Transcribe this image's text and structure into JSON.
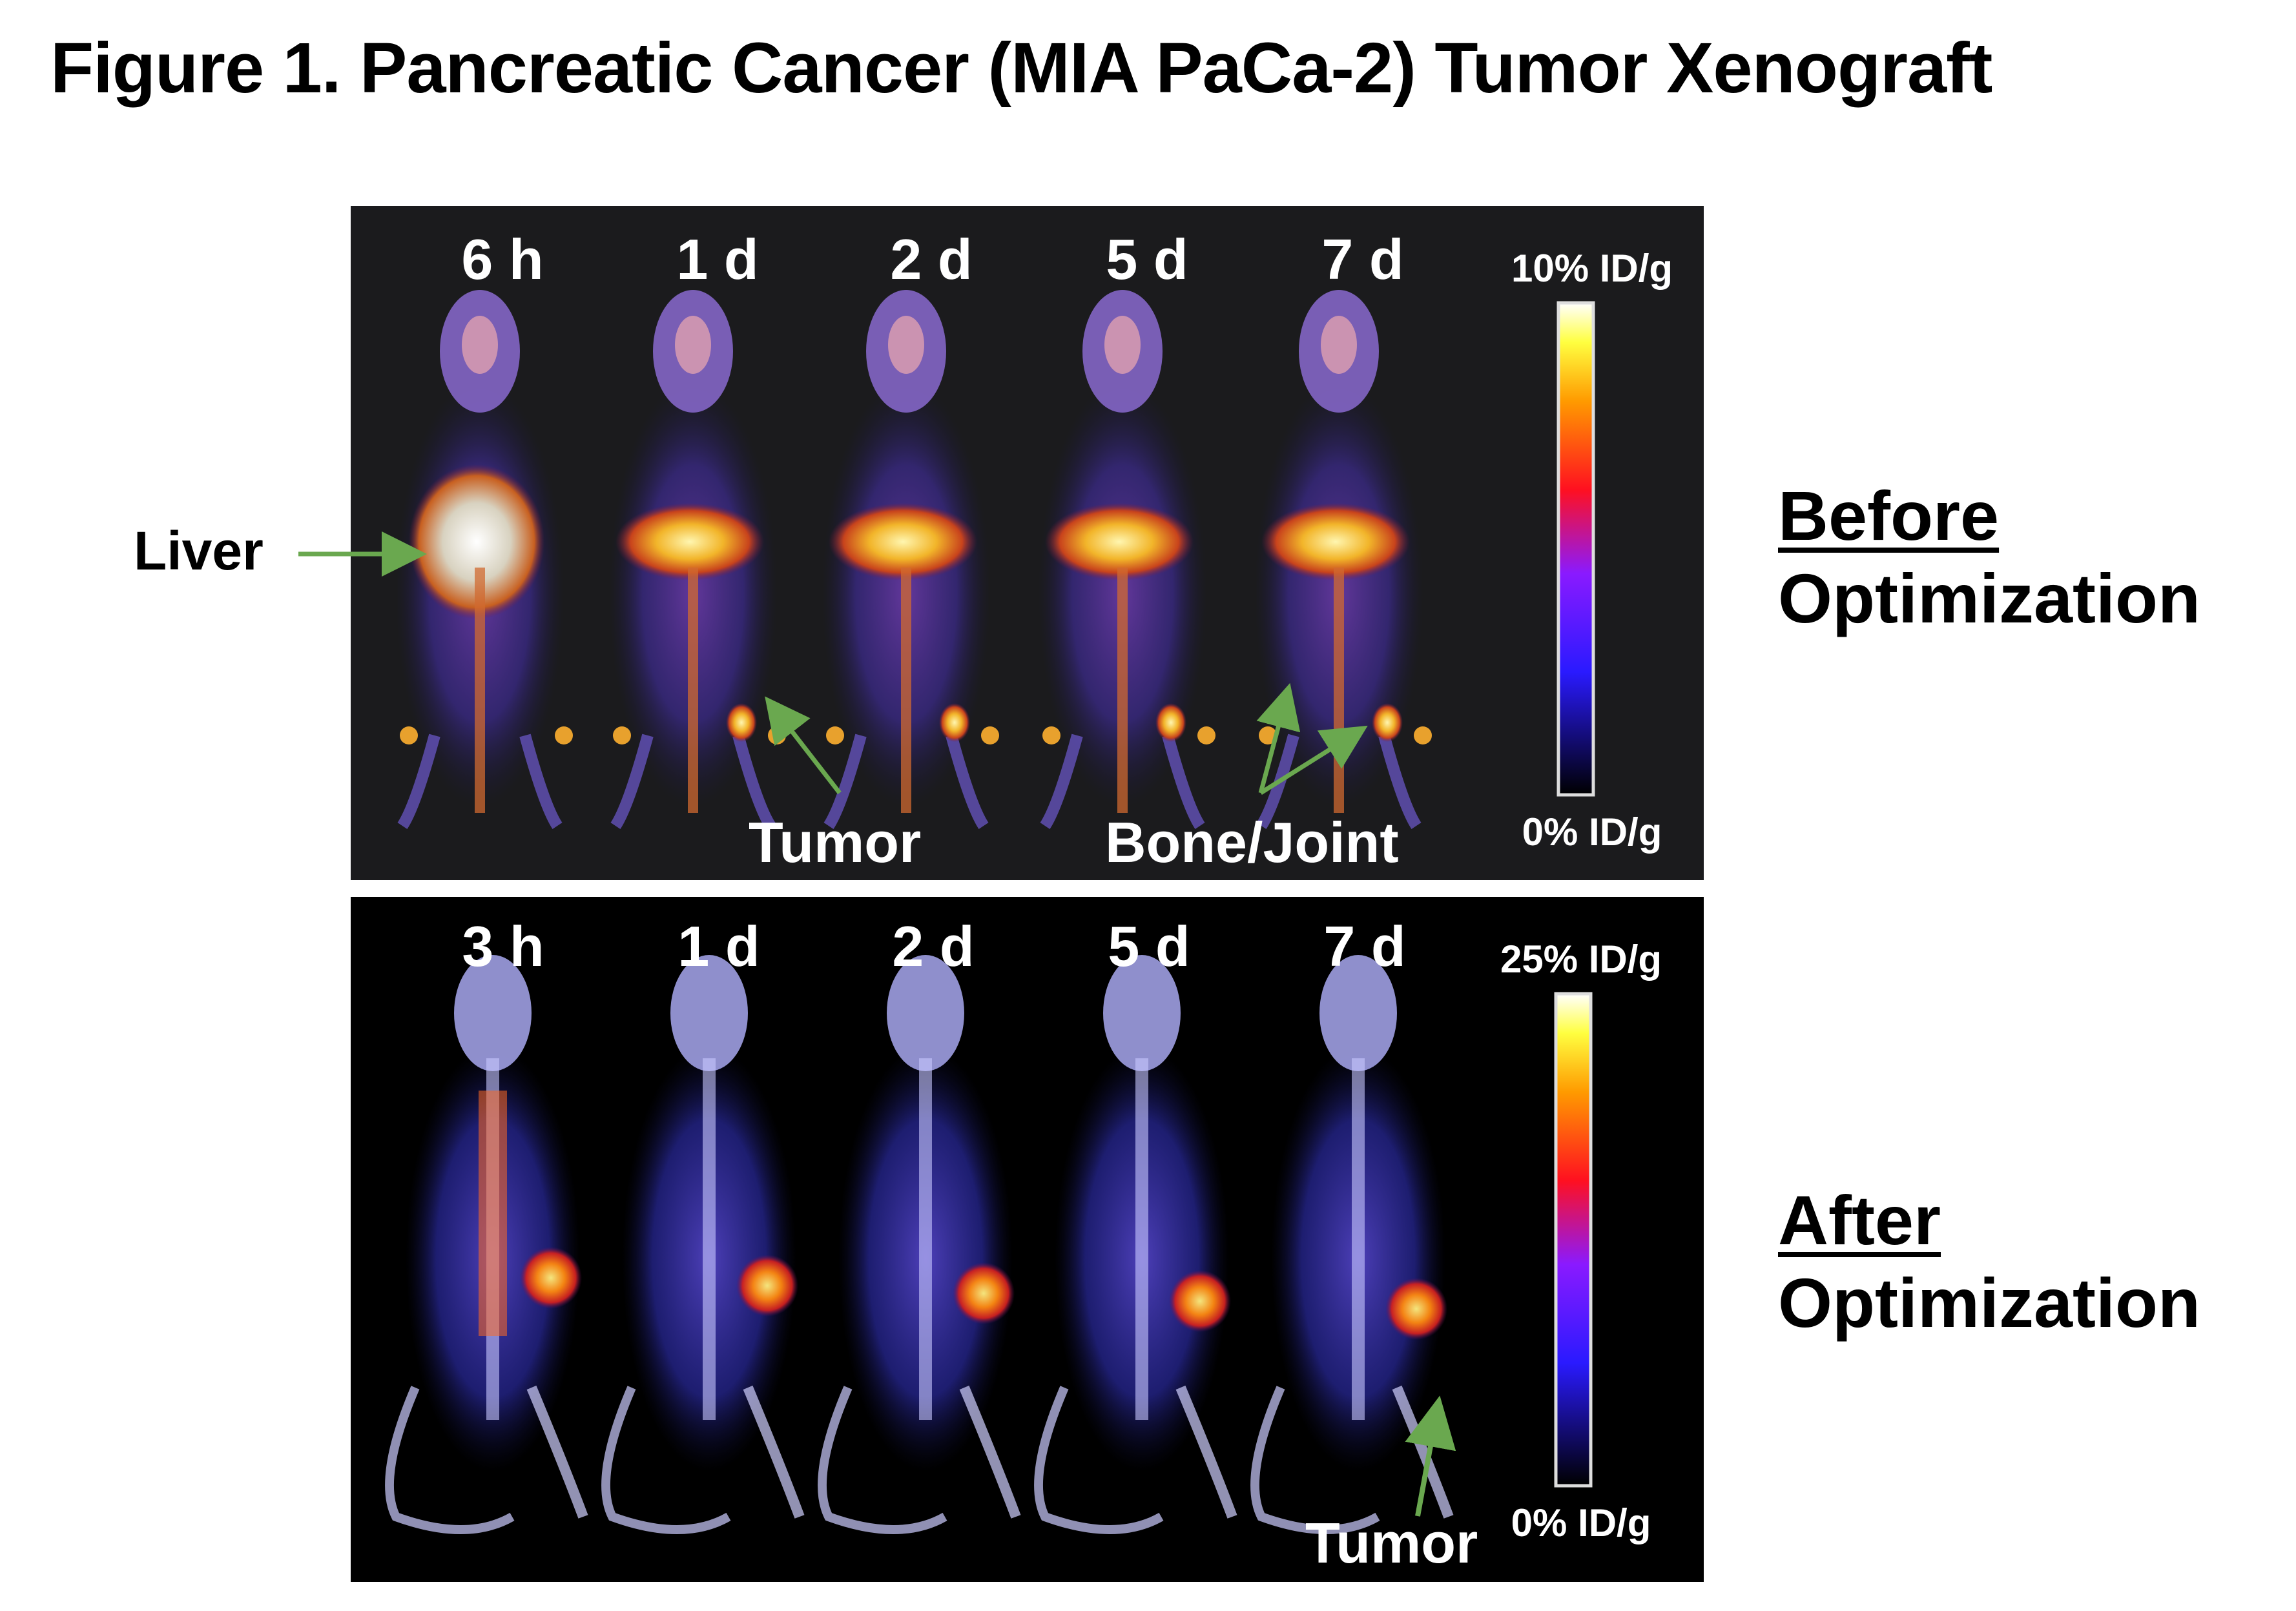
{
  "figure_title": "Figure 1. Pancreatic Cancer (MIA PaCa-2) Tumor Xenograft",
  "panels": [
    {
      "id": "before",
      "timepoints": [
        "6 h",
        "1 d",
        "2 d",
        "5 d",
        "7 d"
      ],
      "scale_max": "10% ID/g",
      "scale_min": "0% ID/g",
      "annotations": [
        "Tumor",
        "Bone/Joint"
      ],
      "side_label_line1": "Before",
      "side_label_line2": "Optimization"
    },
    {
      "id": "after",
      "timepoints": [
        "3 h",
        "1 d",
        "2 d",
        "5 d",
        "7 d"
      ],
      "scale_max": "25% ID/g",
      "scale_min": "0% ID/g",
      "annotations": [
        "Tumor"
      ],
      "side_label_line1": "After",
      "side_label_line2": "Optimization"
    }
  ],
  "outside_labels": {
    "liver": "Liver"
  },
  "colors": {
    "arrow": "#6aa84f",
    "panel_before_bg": "#1b1b1d",
    "panel_after_bg": "#000000"
  }
}
